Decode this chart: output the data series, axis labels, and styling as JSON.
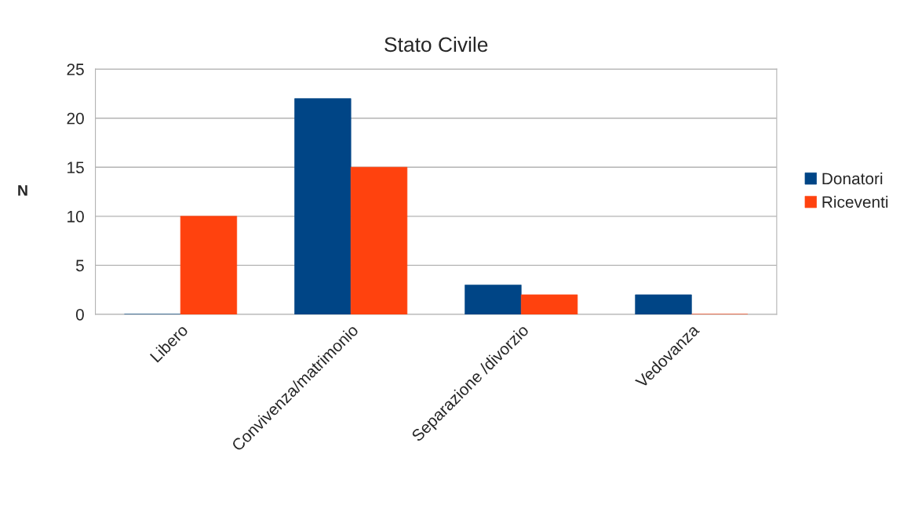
{
  "chart_data": {
    "type": "bar",
    "title": "Stato Civile",
    "ylabel": "N",
    "categories": [
      "Libero",
      "Convivenza/matrimonio",
      "Separazione /divorzio",
      "Vedovanza"
    ],
    "series": [
      {
        "name": "Donatori",
        "color": "#004586",
        "values": [
          0,
          22,
          3,
          2
        ]
      },
      {
        "name": "Riceventi",
        "color": "#ff420e",
        "values": [
          10,
          15,
          2,
          0
        ]
      }
    ],
    "ylim": [
      0,
      25
    ],
    "yticks": [
      0,
      5,
      10,
      15,
      20,
      25
    ],
    "grid": "y",
    "legend": "right"
  }
}
